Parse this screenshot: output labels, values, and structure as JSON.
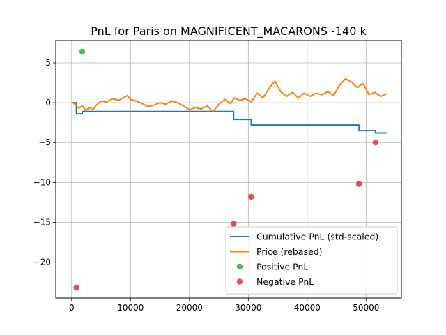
{
  "chart_data": {
    "type": "line",
    "title": "PnL for Paris on MAGNIFICENT_MACARONS -140 k",
    "xlabel": "",
    "ylabel": "",
    "xlim": [
      -2700,
      56000
    ],
    "ylim": [
      -24.5,
      7.8
    ],
    "grid": true,
    "x_ticks": [
      0,
      10000,
      20000,
      30000,
      40000,
      50000
    ],
    "y_ticks": [
      5,
      0,
      -5,
      -10,
      -15,
      -20
    ],
    "legend_position": "lower-right",
    "colors": {
      "cumulative": "#1f77b4",
      "price": "#ff7f0e",
      "positive": "#2ca02c",
      "negative": "#d62728"
    },
    "series": [
      {
        "name": "Cumulative PnL (std-scaled)",
        "kind": "step",
        "x": [
          0,
          800,
          800,
          1800,
          1800,
          27500,
          27500,
          30500,
          30500,
          48800,
          48800,
          51600,
          51600,
          53500
        ],
        "y": [
          0,
          0,
          -1.4,
          -1.4,
          -1.1,
          -1.1,
          -2.1,
          -2.1,
          -2.8,
          -2.8,
          -3.5,
          -3.5,
          -3.8,
          -3.8
        ]
      },
      {
        "name": "Price (rebased)",
        "kind": "line",
        "x": [
          0,
          600,
          1200,
          1800,
          2400,
          3000,
          3600,
          4200,
          5000,
          6000,
          7000,
          8000,
          9000,
          9500,
          10000,
          11000,
          12000,
          13000,
          14000,
          15000,
          16000,
          17000,
          18000,
          19000,
          20000,
          21000,
          22000,
          23000,
          24000,
          25000,
          26000,
          27000,
          27600,
          28500,
          29500,
          30500,
          31500,
          32500,
          33500,
          34500,
          35500,
          36500,
          37500,
          38500,
          39500,
          40500,
          41500,
          42500,
          43500,
          44500,
          45500,
          46500,
          47500,
          48500,
          49500,
          50500,
          51500,
          52500,
          53500
        ],
        "y": [
          0.1,
          -0.2,
          -0.7,
          -0.4,
          -1.0,
          -0.6,
          -0.9,
          -0.3,
          0.2,
          0.1,
          0.5,
          0.3,
          0.7,
          0.9,
          0.4,
          0.2,
          -0.1,
          -0.5,
          -0.3,
          0.0,
          -0.2,
          0.2,
          0.0,
          -0.4,
          -0.9,
          -0.6,
          -0.8,
          -0.4,
          -1.1,
          -0.2,
          0.4,
          -0.1,
          0.6,
          0.3,
          0.5,
          0.1,
          1.2,
          0.6,
          1.8,
          2.7,
          1.4,
          0.8,
          1.3,
          0.6,
          1.2,
          0.8,
          1.2,
          1.0,
          1.4,
          0.9,
          2.2,
          3.0,
          2.6,
          1.9,
          2.4,
          1.0,
          1.3,
          0.8,
          1.1
        ]
      },
      {
        "name": "Positive PnL",
        "kind": "scatter",
        "x": [
          1800
        ],
        "y": [
          6.4
        ]
      },
      {
        "name": "Negative PnL",
        "kind": "scatter",
        "x": [
          800,
          27500,
          30500,
          48800,
          51600
        ],
        "y": [
          -23.2,
          -15.2,
          -11.8,
          -10.2,
          -5.0
        ]
      }
    ]
  }
}
